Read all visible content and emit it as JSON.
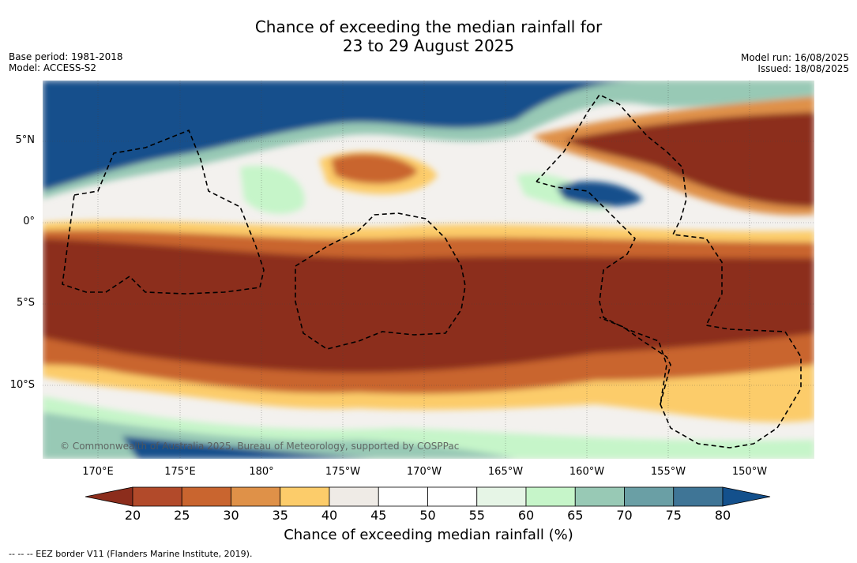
{
  "title": {
    "line1": "Chance of exceeding the median rainfall for",
    "line2": "23 to 29 August 2025"
  },
  "meta_left": {
    "base_period": "Base period: 1981-2018",
    "model": "Model: ACCESS-S2"
  },
  "meta_right": {
    "model_run": "Model run: 16/08/2025",
    "issued": "Issued: 18/08/2025"
  },
  "map": {
    "copyright": "© Commonwealth of Australia 2025, Bureau of Meteorology, supported by COSPPac",
    "lat_labels": [
      "5°N",
      "0°",
      "5°S",
      "10°S"
    ],
    "lon_labels": [
      "170°E",
      "175°E",
      "180°",
      "175°W",
      "170°W",
      "165°W",
      "160°W",
      "155°W",
      "150°W"
    ]
  },
  "colorbar": {
    "ticks": [
      "20",
      "25",
      "30",
      "35",
      "40",
      "45",
      "50",
      "55",
      "60",
      "65",
      "70",
      "75",
      "80"
    ],
    "colors": [
      "#8c2d1c",
      "#b24a2a",
      "#c9652f",
      "#df9148",
      "#fccc6a",
      "#efebe6",
      "#ffffff",
      "#ffffff",
      "#e6f5e6",
      "#c6f5c9",
      "#98c9b5",
      "#6a9fa5",
      "#3f7596",
      "#13508c"
    ],
    "label": "Chance of exceeding median rainfall (%)"
  },
  "legend": {
    "eez": "--  --  -- EEZ border V11 (Flanders Marine Institute, 2019)."
  }
}
